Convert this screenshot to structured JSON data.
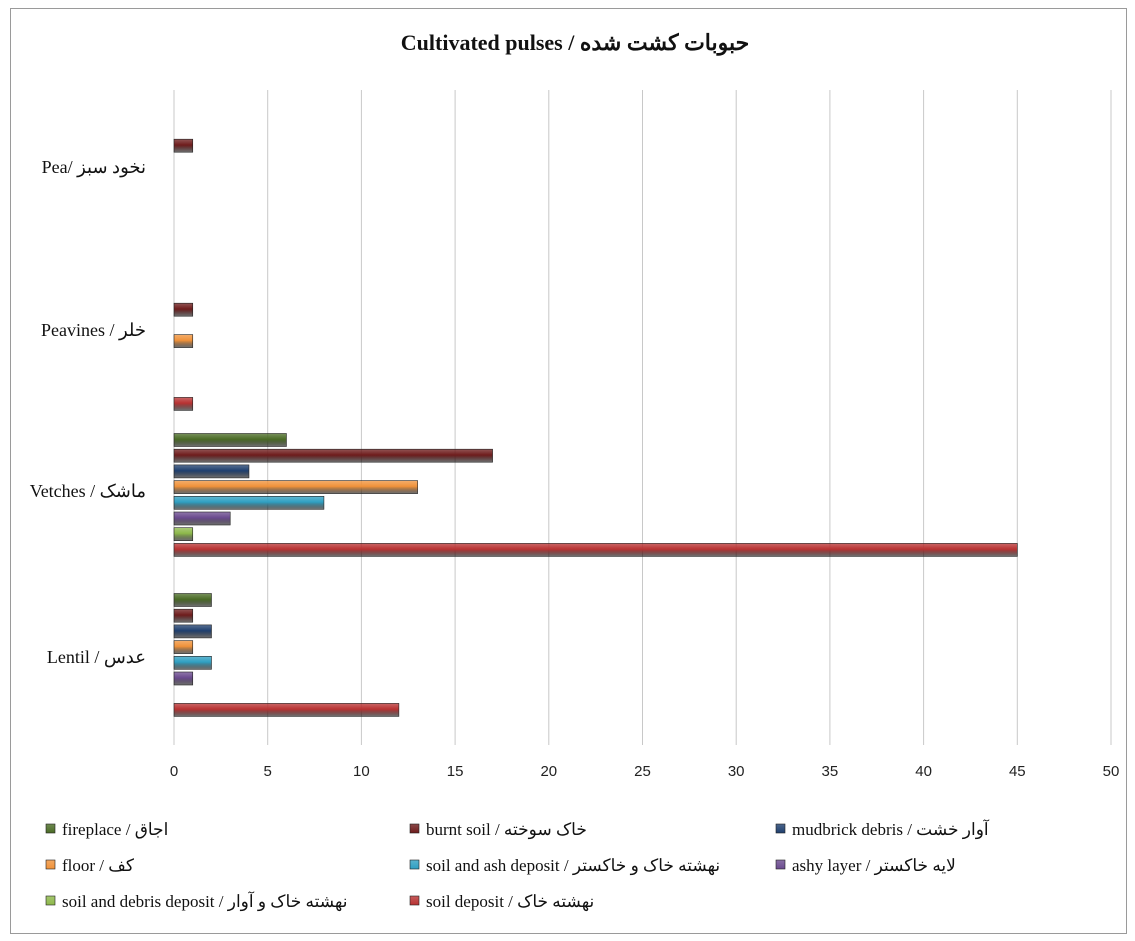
{
  "chart_data": {
    "type": "bar",
    "orientation": "horizontal",
    "title": "Cultivated pulses / حبوبات کشت شده",
    "xlim": [
      0,
      50
    ],
    "xticks": [
      0,
      5,
      10,
      15,
      20,
      25,
      30,
      35,
      40,
      45,
      50
    ],
    "grid": true,
    "legend_position": "bottom",
    "categories": [
      "نخود سبز /Pea",
      "Peavines / خلر",
      "Vetches / ماشک",
      "Lentil / عدس"
    ],
    "series": [
      {
        "name": "fireplace / اجاق",
        "color": "#4a6b25",
        "values": [
          0,
          0,
          6,
          2
        ]
      },
      {
        "name": "burnt soil / خاک سوخته",
        "color": "#6e1c1c",
        "values": [
          1,
          1,
          17,
          1
        ]
      },
      {
        "name": "mudbrick debris / آوار خشت",
        "color": "#1f3f6e",
        "values": [
          0,
          0,
          4,
          2
        ]
      },
      {
        "name": "floor / کف",
        "color": "#f0923a",
        "values": [
          0,
          1,
          13,
          1
        ]
      },
      {
        "name": "soil and ash deposit / نهشته خاک و خاکستر",
        "color": "#2f9fc2",
        "values": [
          0,
          0,
          8,
          2
        ]
      },
      {
        "name": "ashy layer / لایه خاکستر",
        "color": "#6a4a8e",
        "values": [
          0,
          0,
          3,
          1
        ]
      },
      {
        "name": "soil and debris deposit / نهشته خاک و آوار",
        "color": "#8db84a",
        "values": [
          0,
          0,
          1,
          0
        ]
      },
      {
        "name": "soil deposit / نهشته خاک",
        "color": "#b83232",
        "values": [
          0,
          1,
          45,
          12
        ]
      }
    ]
  }
}
